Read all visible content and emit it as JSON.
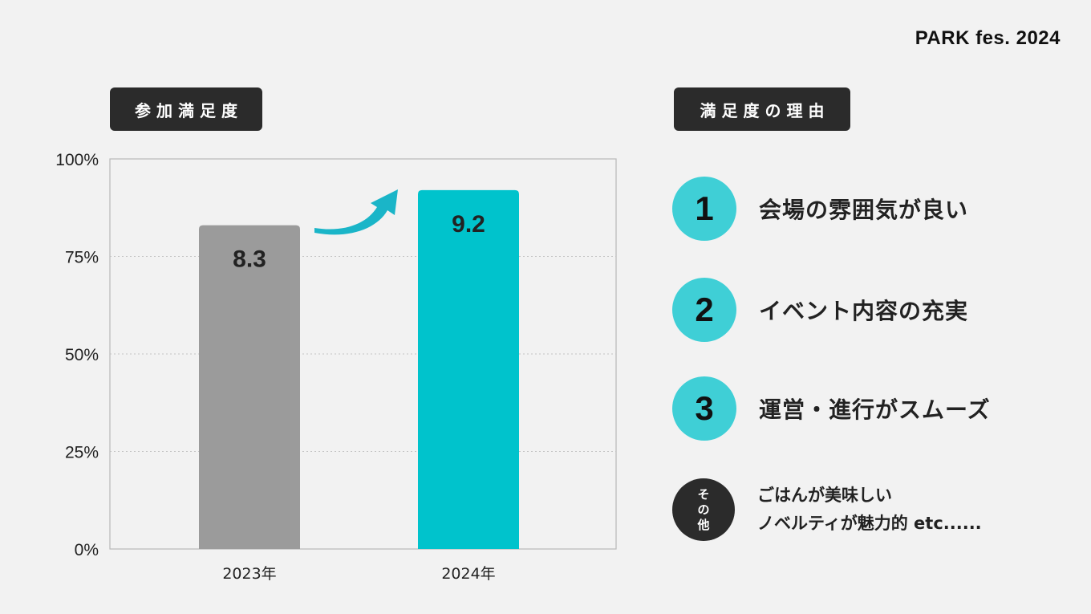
{
  "brand": "PARK fes. 2024",
  "chart_title": "参加満足度",
  "reasons_title": "満足度の理由",
  "colors": {
    "bar_2023": "#9b9b9b",
    "bar_2024": "#00c3cc",
    "circle": "#3fcfd6",
    "arrow": "#1ab5c8",
    "dark": "#2b2b2b"
  },
  "chart_data": {
    "type": "bar",
    "categories": [
      "2023年",
      "2024年"
    ],
    "values": [
      8.3,
      9.2
    ],
    "value_labels": [
      "8.3",
      "9.2"
    ],
    "ylim": [
      0,
      100
    ],
    "yticks": [
      "0%",
      "25%",
      "50%",
      "75%",
      "100%"
    ],
    "ytick_values": [
      0,
      25,
      50,
      75,
      100
    ],
    "bar_heights_percent": [
      83,
      92
    ],
    "grid": true,
    "annotation": "arrow-up-right"
  },
  "reasons": [
    {
      "num": "1",
      "text": "会場の雰囲気が良い"
    },
    {
      "num": "2",
      "text": "イベント内容の充実"
    },
    {
      "num": "3",
      "text": "運営・進行がスムーズ"
    }
  ],
  "other": {
    "chars": [
      "そ",
      "の",
      "他"
    ],
    "lines": [
      "ごはんが美味しい",
      "ノベルティが魅力的 etc......"
    ]
  }
}
